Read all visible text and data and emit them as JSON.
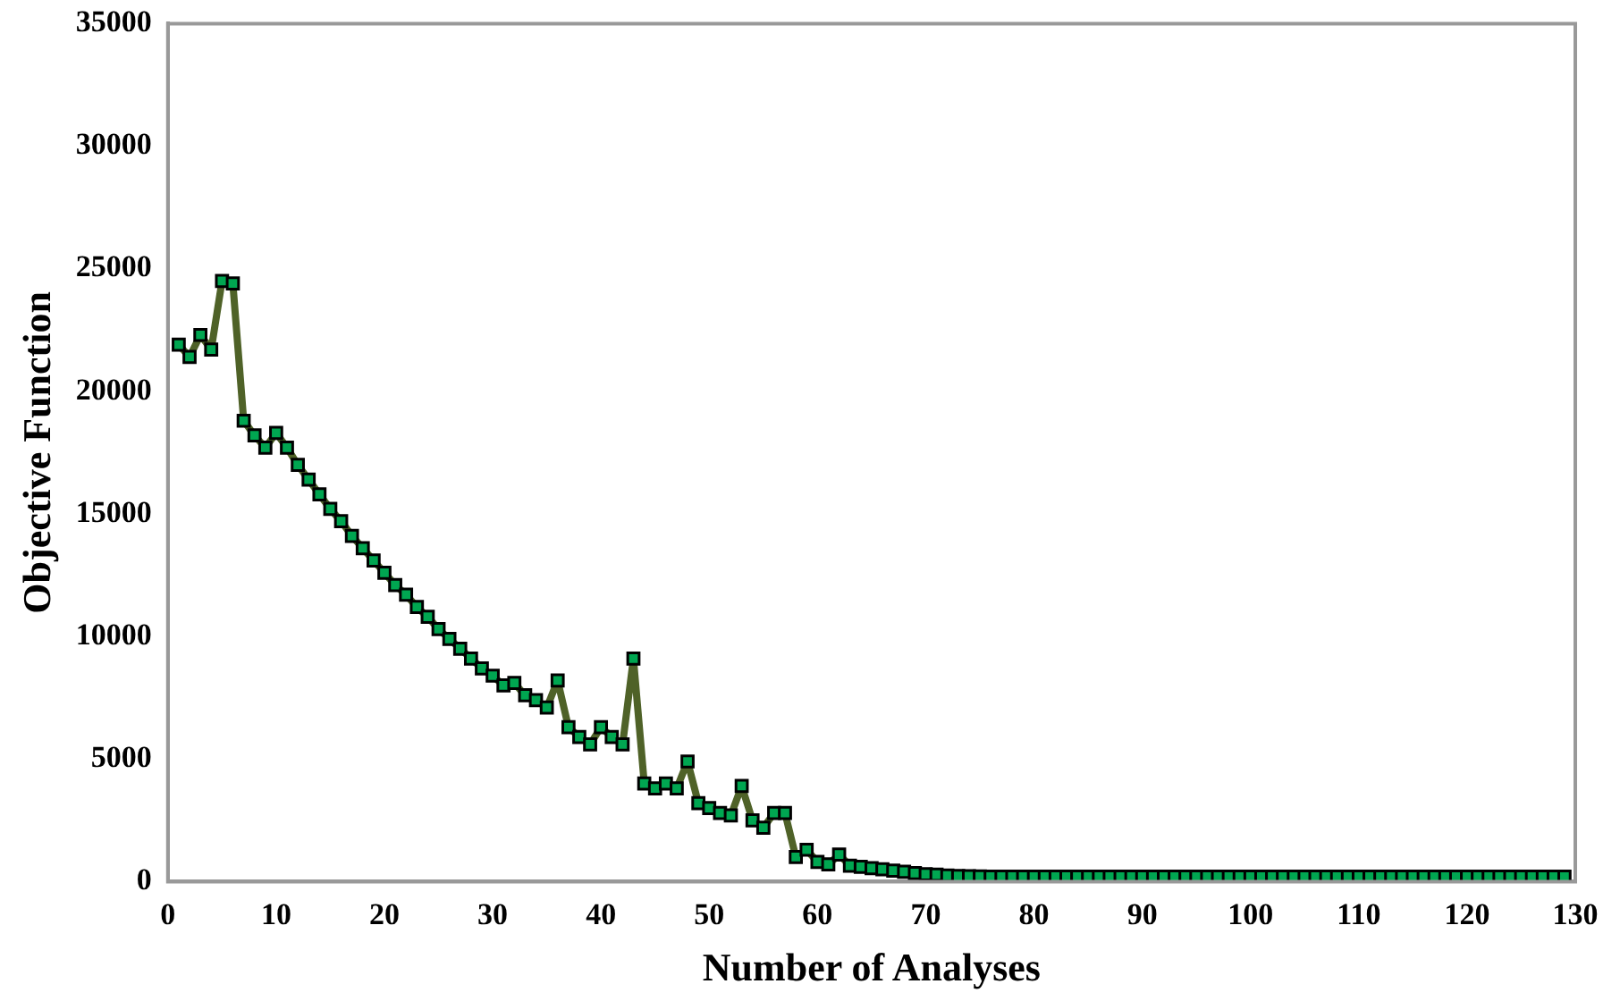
{
  "chart_data": {
    "type": "line",
    "xlabel": "Number of Analyses",
    "ylabel": "Objective Function",
    "x": [
      1,
      2,
      3,
      4,
      5,
      6,
      7,
      8,
      9,
      10,
      11,
      12,
      13,
      14,
      15,
      16,
      17,
      18,
      19,
      20,
      21,
      22,
      23,
      24,
      25,
      26,
      27,
      28,
      29,
      30,
      31,
      32,
      33,
      34,
      35,
      36,
      37,
      38,
      39,
      40,
      41,
      42,
      43,
      44,
      45,
      46,
      47,
      48,
      49,
      50,
      51,
      52,
      53,
      54,
      55,
      56,
      57,
      58,
      59,
      60,
      61,
      62,
      63,
      64,
      65,
      66,
      67,
      68,
      69,
      70,
      71,
      72,
      73,
      74,
      75,
      76,
      77,
      78,
      79,
      80,
      81,
      82,
      83,
      84,
      85,
      86,
      87,
      88,
      89,
      90,
      91,
      92,
      93,
      94,
      95,
      96,
      97,
      98,
      99,
      100,
      101,
      102,
      103,
      104,
      105,
      106,
      107,
      108,
      109,
      110,
      111,
      112,
      113,
      114,
      115,
      116,
      117,
      118,
      119,
      120,
      121,
      122,
      123,
      124,
      125,
      126,
      127,
      128,
      129
    ],
    "series": [
      {
        "color": "#4f6228",
        "values": [
          21900,
          21400,
          22300,
          21700,
          24500,
          24400,
          18800,
          18200,
          17700,
          18300,
          17700,
          17000,
          16400,
          15800,
          15200,
          14700,
          14100,
          13600,
          13100,
          12600,
          12100,
          11700,
          11200,
          10800,
          10300,
          9900,
          9500,
          9100,
          8700,
          8400,
          8000,
          8100,
          7600,
          7400,
          7100,
          8200,
          6300,
          5900,
          5600,
          6300,
          5900,
          5600,
          9100,
          4000,
          3800,
          4000,
          3800,
          4900,
          3200,
          3000,
          2800,
          2700,
          3900,
          2500,
          2200,
          2800,
          2800,
          1000,
          1300,
          800,
          700,
          1100,
          650,
          600,
          550,
          500,
          450,
          400,
          350,
          300,
          280,
          250,
          230,
          220,
          210,
          200,
          200,
          200,
          200,
          200,
          200,
          200,
          200,
          200,
          200,
          200,
          200,
          200,
          200,
          200,
          200,
          200,
          200,
          200,
          200,
          200,
          200,
          200,
          200,
          200,
          200,
          200,
          200,
          200,
          200,
          200,
          200,
          200,
          200,
          200,
          200,
          200,
          200,
          200,
          200,
          200,
          200,
          200,
          200,
          200,
          200,
          200,
          200,
          200,
          200,
          200,
          200,
          200,
          200
        ]
      }
    ],
    "xlim": [
      0,
      130
    ],
    "xticks": [
      0,
      10,
      20,
      30,
      40,
      50,
      60,
      70,
      80,
      90,
      100,
      110,
      120,
      130
    ],
    "ylim": [
      0,
      35000
    ],
    "yticks": [
      0,
      5000,
      10000,
      15000,
      20000,
      25000,
      30000,
      35000
    ],
    "grid": false,
    "legend": false,
    "marker": "square",
    "line_style": "solid"
  }
}
